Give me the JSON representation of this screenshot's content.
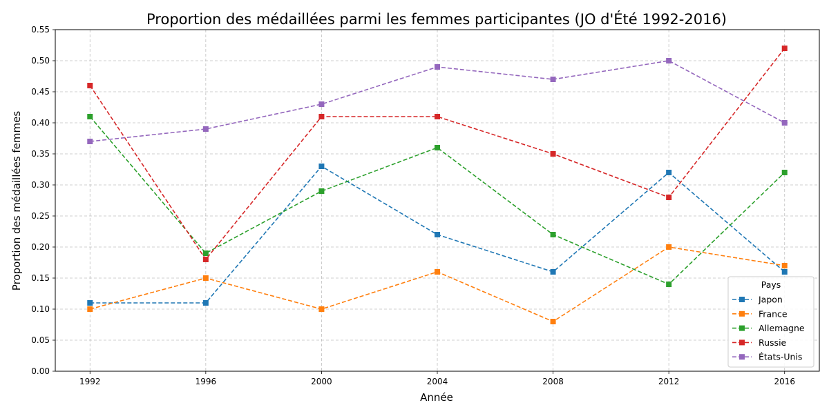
{
  "chart_data": {
    "type": "line",
    "title": "Proportion des médaillées parmi les femmes participantes (JO d'Été 1992-2016)",
    "xlabel": "Année",
    "ylabel": "Proportion des médaillées femmes",
    "x": [
      1992,
      1996,
      2000,
      2004,
      2008,
      2012,
      2016
    ],
    "x_tick_labels": [
      "1992",
      "1996",
      "2000",
      "2004",
      "2008",
      "2012",
      "2016"
    ],
    "xlim": [
      1990.8,
      2017.2
    ],
    "ylim": [
      0,
      0.55
    ],
    "y_ticks": [
      0.0,
      0.05,
      0.1,
      0.15,
      0.2,
      0.25,
      0.3,
      0.35,
      0.4,
      0.45,
      0.5,
      0.55
    ],
    "y_tick_labels": [
      "0.00",
      "0.05",
      "0.10",
      "0.15",
      "0.20",
      "0.25",
      "0.30",
      "0.35",
      "0.40",
      "0.45",
      "0.50",
      "0.55"
    ],
    "grid": true,
    "legend": {
      "title": "Pays",
      "placement": "lower-right"
    },
    "line_style": "dashed",
    "marker": "square",
    "series": [
      {
        "name": "Japon",
        "color": "#1f77b4",
        "values": [
          0.11,
          0.11,
          0.33,
          0.22,
          0.16,
          0.32,
          0.16
        ]
      },
      {
        "name": "France",
        "color": "#ff7f0e",
        "values": [
          0.1,
          0.15,
          0.1,
          0.16,
          0.08,
          0.2,
          0.17
        ]
      },
      {
        "name": "Allemagne",
        "color": "#2ca02c",
        "values": [
          0.41,
          0.19,
          0.29,
          0.36,
          0.22,
          0.14,
          0.32
        ]
      },
      {
        "name": "Russie",
        "color": "#d62728",
        "values": [
          0.46,
          0.18,
          0.41,
          0.41,
          0.35,
          0.28,
          0.52
        ]
      },
      {
        "name": "États-Unis",
        "color": "#9467bd",
        "values": [
          0.37,
          0.39,
          0.43,
          0.49,
          0.47,
          0.5,
          0.4
        ]
      }
    ]
  }
}
